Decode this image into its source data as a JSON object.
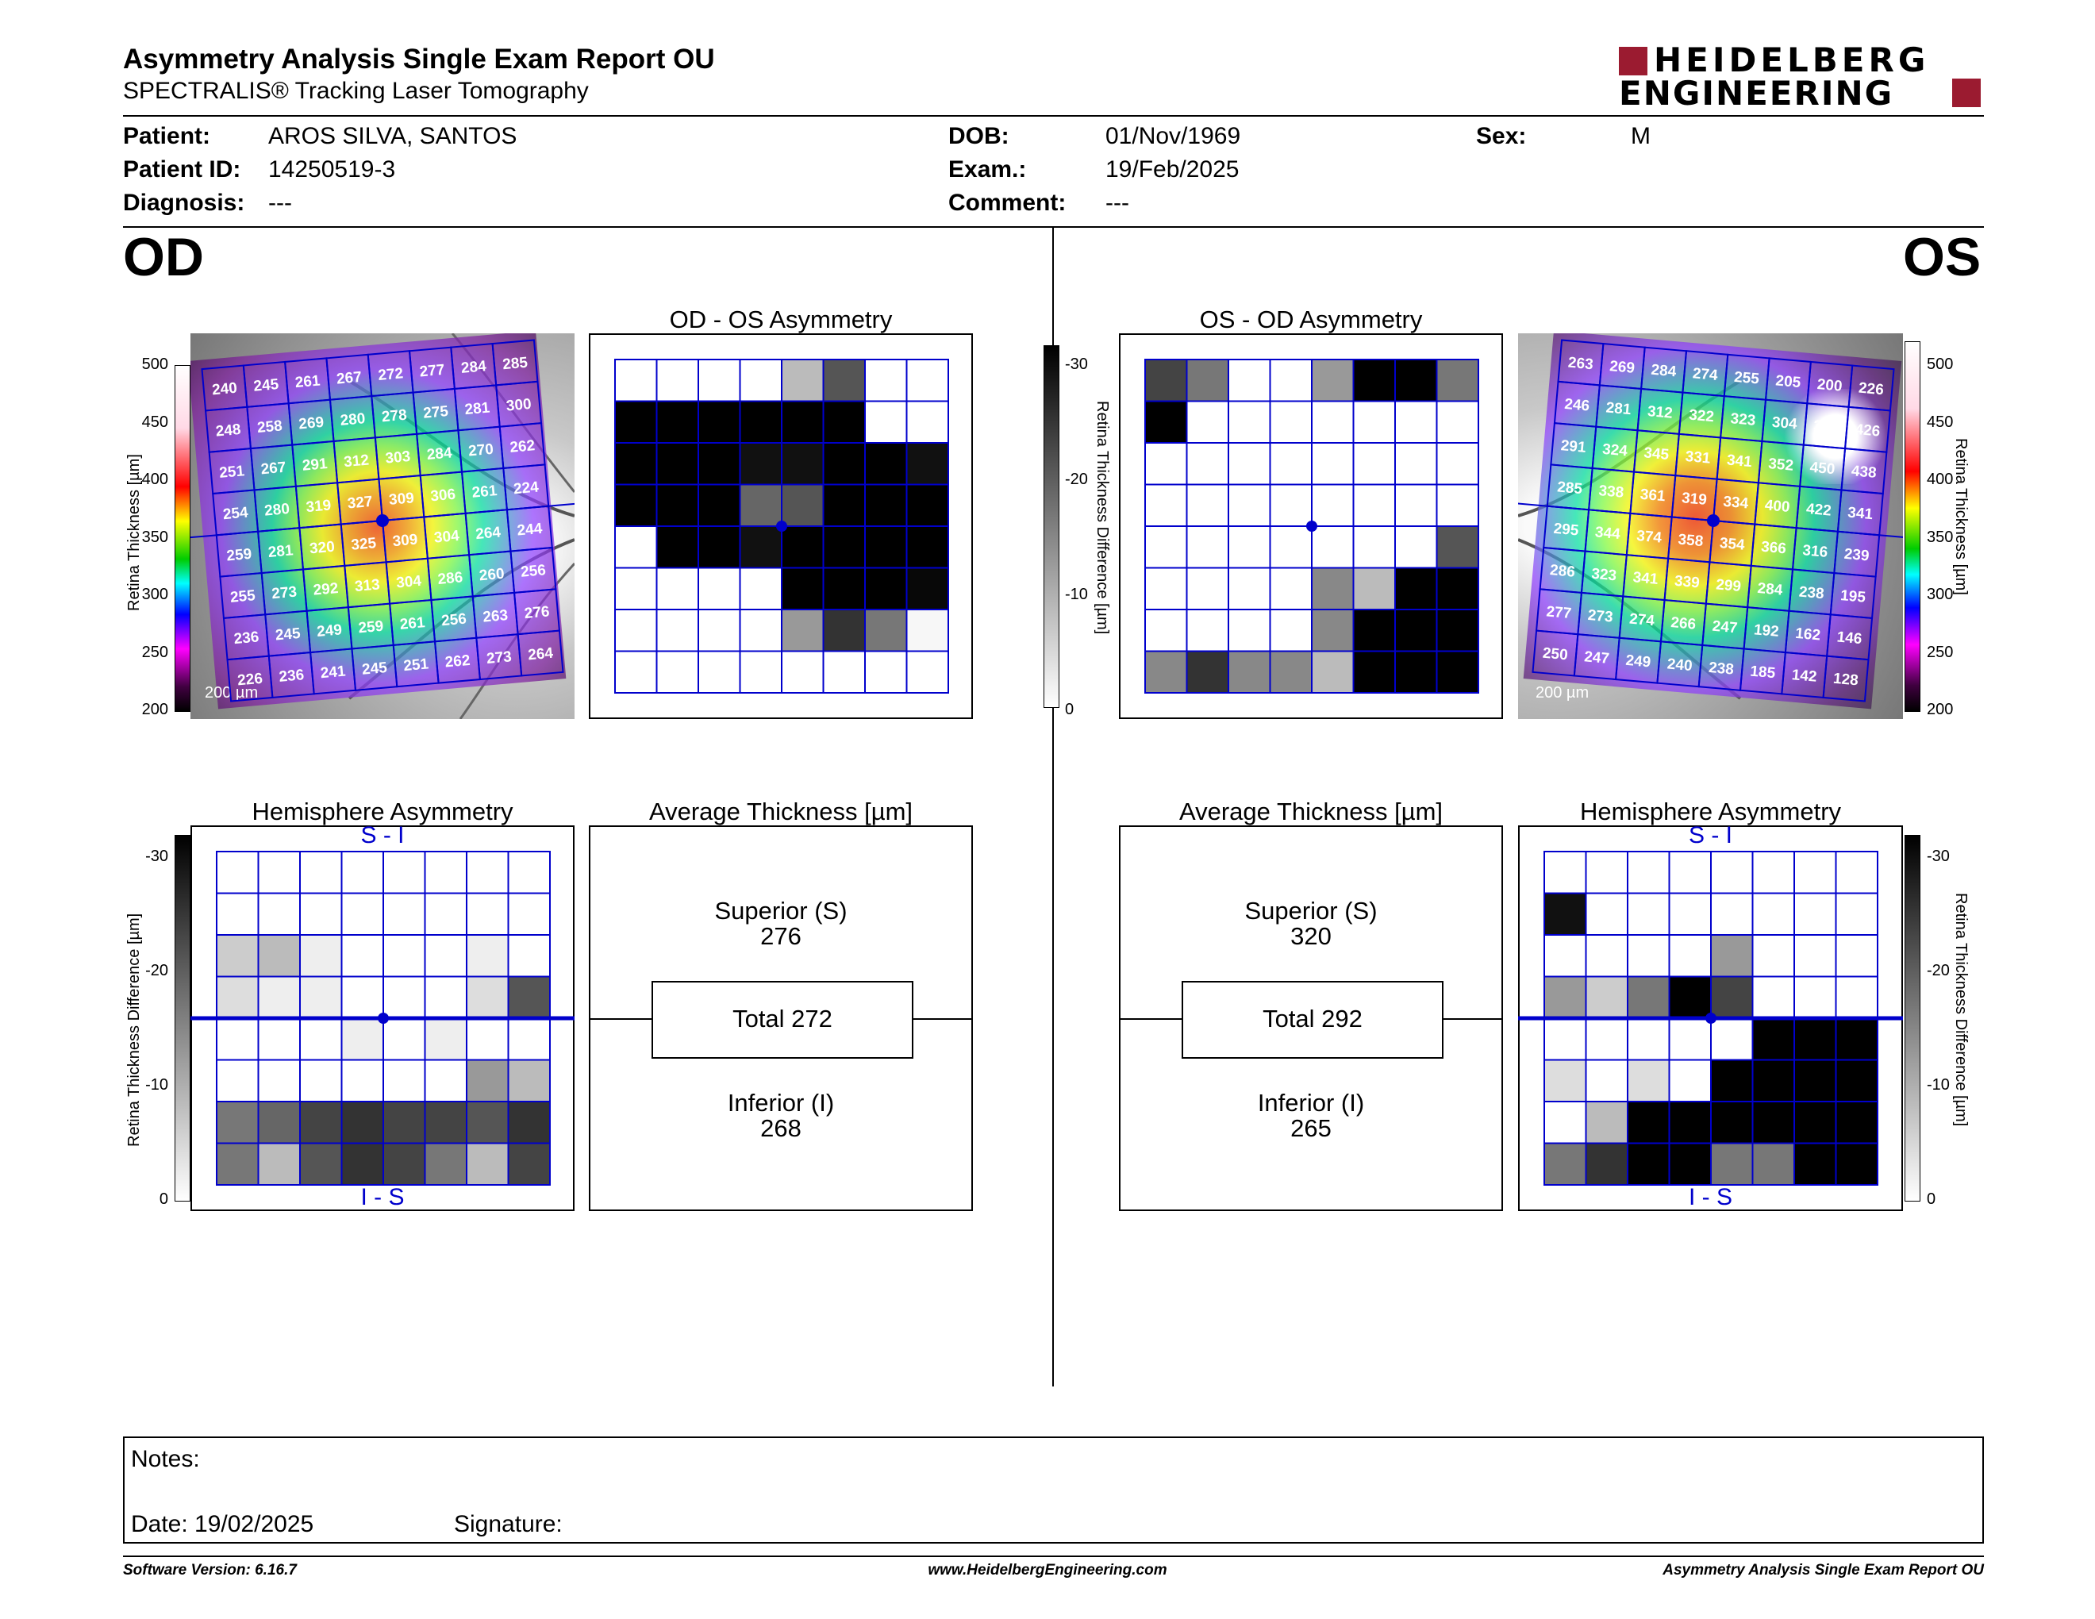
{
  "report": {
    "title": "Asymmetry Analysis Single Exam Report OU",
    "subtitle": "SPECTRALIS® Tracking Laser Tomography",
    "logo_line1": "HEIDELBERG",
    "logo_line2": "ENGINEERING"
  },
  "patient": {
    "patient_label": "Patient:",
    "patient_value": "AROS SILVA, SANTOS",
    "id_label": "Patient ID:",
    "id_value": "14250519-3",
    "diag_label": "Diagnosis:",
    "diag_value": "---",
    "dob_label": "DOB:",
    "dob_value": "01/Nov/1969",
    "exam_label": "Exam.:",
    "exam_value": "19/Feb/2025",
    "comment_label": "Comment:",
    "comment_value": "---",
    "sex_label": "Sex:",
    "sex_value": "M"
  },
  "od": {
    "eye_label": "OD",
    "asym_title": "OD - OS Asymmetry",
    "hemi_title": "Hemisphere Asymmetry",
    "avg_title": "Average Thickness [µm]",
    "hemi_top": "S - I",
    "hemi_bottom": "I - S",
    "scale_bar": "200 µm",
    "thickness_axis_label": "Retina  Thickness [µm]",
    "diff_axis_label": "Retina Thickness Difference [µm]",
    "superior_label": "Superior (S)",
    "superior_value": "276",
    "total_label": "Total 272",
    "inferior_label": "Inferior (I)",
    "inferior_value": "268",
    "thickness_grid": [
      [
        240,
        245,
        261,
        267,
        272,
        277,
        284,
        285
      ],
      [
        248,
        258,
        269,
        280,
        278,
        275,
        281,
        300
      ],
      [
        251,
        267,
        291,
        312,
        303,
        284,
        270,
        262
      ],
      [
        254,
        280,
        319,
        327,
        309,
        306,
        261,
        224
      ],
      [
        259,
        281,
        320,
        325,
        309,
        304,
        264,
        244
      ],
      [
        255,
        273,
        292,
        313,
        304,
        286,
        260,
        256
      ],
      [
        236,
        245,
        249,
        259,
        261,
        256,
        263,
        276
      ],
      [
        226,
        236,
        241,
        245,
        251,
        262,
        273,
        264
      ]
    ],
    "asym_gray": [
      [
        0,
        0,
        0,
        0,
        8,
        20,
        0,
        0
      ],
      [
        30,
        30,
        30,
        30,
        30,
        30,
        0,
        0
      ],
      [
        30,
        30,
        30,
        28,
        28,
        30,
        30,
        28
      ],
      [
        30,
        30,
        30,
        18,
        20,
        30,
        30,
        30
      ],
      [
        0,
        30,
        30,
        28,
        30,
        30,
        30,
        30
      ],
      [
        0,
        0,
        0,
        0,
        30,
        30,
        30,
        29
      ],
      [
        0,
        0,
        0,
        0,
        12,
        24,
        16,
        1
      ],
      [
        0,
        0,
        0,
        0,
        0,
        0,
        0,
        0
      ]
    ],
    "hemi_gray": [
      [
        0,
        0,
        0,
        0,
        0,
        0,
        0,
        0
      ],
      [
        0,
        0,
        0,
        0,
        0,
        0,
        0,
        0
      ],
      [
        6,
        8,
        2,
        0,
        0,
        0,
        2,
        0
      ],
      [
        4,
        2,
        2,
        0,
        0,
        0,
        4,
        20
      ],
      [
        0,
        0,
        0,
        2,
        0,
        2,
        0,
        0
      ],
      [
        0,
        0,
        0,
        0,
        0,
        0,
        12,
        8
      ],
      [
        16,
        18,
        22,
        24,
        22,
        22,
        20,
        24
      ],
      [
        16,
        8,
        20,
        24,
        22,
        16,
        8,
        22
      ]
    ]
  },
  "os": {
    "eye_label": "OS",
    "asym_title": "OS - OD Asymmetry",
    "hemi_title": "Hemisphere Asymmetry",
    "avg_title": "Average Thickness [µm]",
    "hemi_top": "S - I",
    "hemi_bottom": "I - S",
    "scale_bar": "200 µm",
    "thickness_axis_label": "Retina  Thickness [µm]",
    "diff_axis_label": "Retina Thickness Difference [µm]",
    "superior_label": "Superior (S)",
    "superior_value": "320",
    "total_label": "Total 292",
    "inferior_label": "Inferior (I)",
    "inferior_value": "265",
    "thickness_grid": [
      [
        263,
        269,
        284,
        274,
        255,
        205,
        200,
        226
      ],
      [
        246,
        281,
        312,
        322,
        323,
        304,
        397,
        426
      ],
      [
        291,
        324,
        345,
        331,
        341,
        352,
        450,
        438
      ],
      [
        285,
        338,
        361,
        319,
        334,
        400,
        422,
        341
      ],
      [
        295,
        344,
        374,
        358,
        354,
        366,
        316,
        239
      ],
      [
        286,
        323,
        341,
        339,
        299,
        284,
        238,
        195
      ],
      [
        277,
        273,
        274,
        266,
        247,
        192,
        162,
        146
      ],
      [
        250,
        247,
        249,
        240,
        238,
        185,
        142,
        128
      ]
    ],
    "asym_gray": [
      [
        22,
        16,
        0,
        0,
        12,
        30,
        30,
        16
      ],
      [
        30,
        0,
        0,
        0,
        0,
        0,
        0,
        0
      ],
      [
        0,
        0,
        0,
        0,
        0,
        0,
        0,
        0
      ],
      [
        0,
        0,
        0,
        0,
        0,
        0,
        0,
        0
      ],
      [
        0,
        0,
        0,
        0,
        0,
        0,
        0,
        20
      ],
      [
        0,
        0,
        0,
        0,
        14,
        8,
        30,
        30
      ],
      [
        0,
        0,
        0,
        0,
        14,
        30,
        30,
        30
      ],
      [
        14,
        24,
        14,
        14,
        8,
        30,
        30,
        30
      ]
    ],
    "hemi_gray": [
      [
        0,
        0,
        0,
        0,
        0,
        0,
        0,
        0
      ],
      [
        28,
        0,
        0,
        0,
        0,
        0,
        0,
        0
      ],
      [
        0,
        0,
        0,
        0,
        12,
        0,
        0,
        0
      ],
      [
        12,
        6,
        16,
        30,
        22,
        0,
        0,
        0
      ],
      [
        0,
        0,
        0,
        0,
        0,
        30,
        30,
        30
      ],
      [
        4,
        0,
        4,
        0,
        30,
        30,
        30,
        30
      ],
      [
        0,
        8,
        30,
        30,
        30,
        30,
        30,
        30
      ],
      [
        16,
        24,
        30,
        30,
        16,
        16,
        30,
        30
      ]
    ]
  },
  "thickness_scale": [
    "500",
    "450",
    "400",
    "350",
    "300",
    "250",
    "200"
  ],
  "diff_scale": [
    "-30",
    "-20",
    "-10",
    "0"
  ],
  "notes": {
    "notes_label": "Notes:",
    "date_label": "Date: 19/02/2025",
    "signature_label": "Signature:"
  },
  "footer": {
    "left": "Software Version: 6.16.7",
    "center": "www.HeidelbergEngineering.com",
    "right": "Asymmetry Analysis Single Exam Report OU"
  },
  "colors": {
    "grid_blue": "#0000cc",
    "brand_red": "#9b1b30"
  }
}
